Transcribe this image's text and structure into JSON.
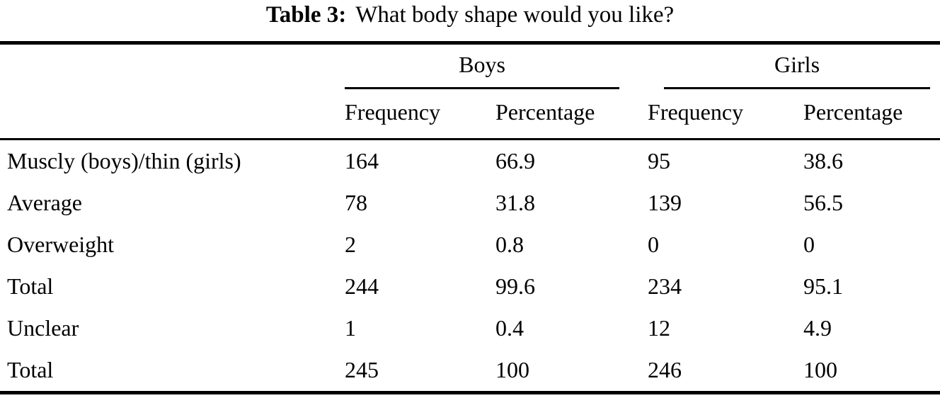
{
  "caption": {
    "label": "Table 3:",
    "text": "What body shape would you like?"
  },
  "table": {
    "groups": [
      {
        "label": "Boys"
      },
      {
        "label": "Girls"
      }
    ],
    "subheaders": [
      "Frequency",
      "Percentage",
      "Frequency",
      "Percentage"
    ],
    "rows": [
      {
        "label": "Muscly (boys)/thin (girls)",
        "values": [
          "164",
          "66.9",
          "95",
          "38.6"
        ]
      },
      {
        "label": "Average",
        "values": [
          "78",
          "31.8",
          "139",
          "56.5"
        ]
      },
      {
        "label": "Overweight",
        "values": [
          "2",
          "0.8",
          "0",
          "0"
        ]
      },
      {
        "label": "Total",
        "values": [
          "244",
          "99.6",
          "234",
          "95.1"
        ]
      },
      {
        "label": "Unclear",
        "values": [
          "1",
          "0.4",
          "12",
          "4.9"
        ]
      },
      {
        "label": "Total",
        "values": [
          "245",
          "100",
          "246",
          "100"
        ]
      }
    ],
    "colors": {
      "rule": "#000000",
      "text": "#000000",
      "background": "#ffffff"
    }
  }
}
